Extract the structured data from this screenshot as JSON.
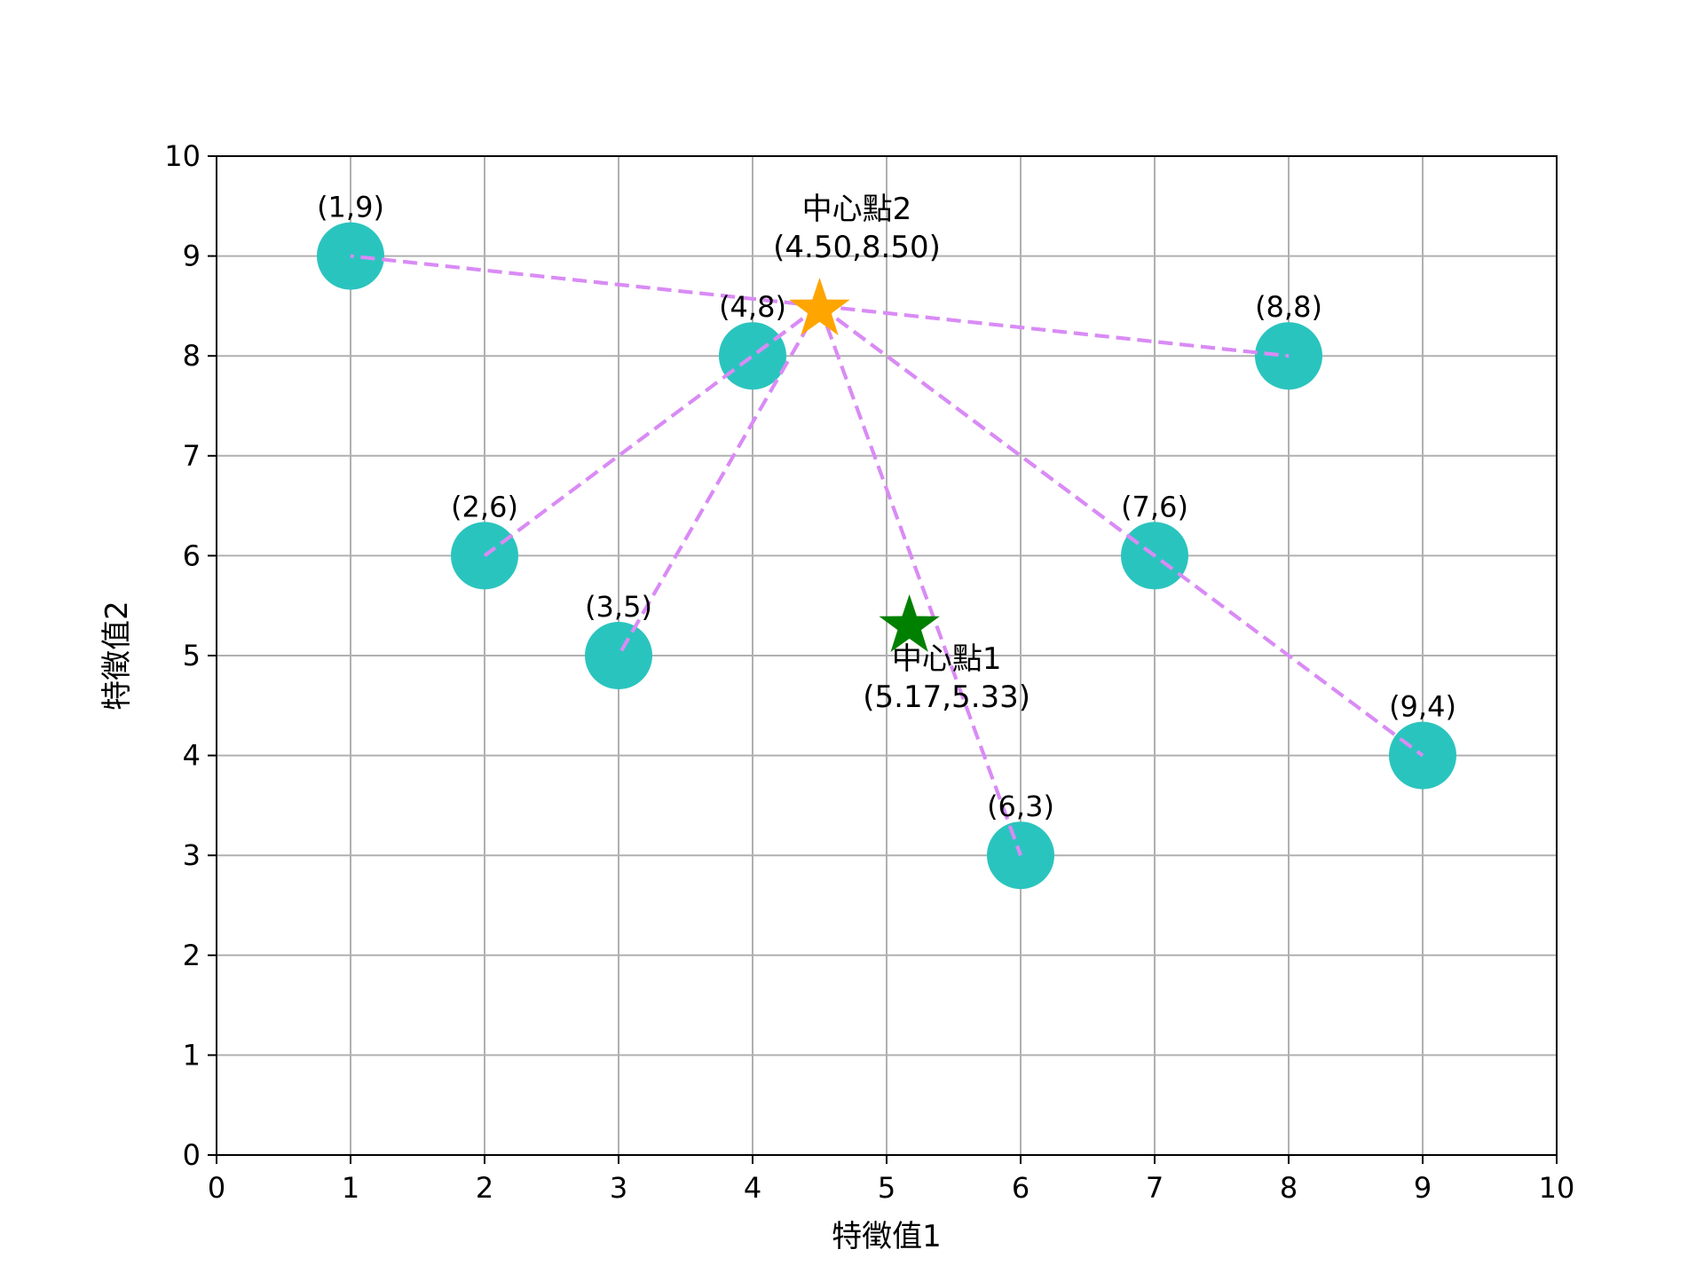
{
  "chart_data": {
    "type": "scatter",
    "title": "",
    "xlabel": "特徵值1",
    "ylabel": "特徵值2",
    "xlim": [
      0,
      10
    ],
    "ylim": [
      0,
      10
    ],
    "xticks": [
      "0",
      "1",
      "2",
      "3",
      "4",
      "5",
      "6",
      "7",
      "8",
      "9",
      "10"
    ],
    "yticks": [
      "0",
      "1",
      "2",
      "3",
      "4",
      "5",
      "6",
      "7",
      "8",
      "9",
      "10"
    ],
    "grid": true,
    "points": [
      {
        "x": 1,
        "y": 9,
        "label": "(1,9)"
      },
      {
        "x": 2,
        "y": 6,
        "label": "(2,6)"
      },
      {
        "x": 3,
        "y": 5,
        "label": "(3,5)"
      },
      {
        "x": 4,
        "y": 8,
        "label": "(4,8)"
      },
      {
        "x": 6,
        "y": 3,
        "label": "(6,3)"
      },
      {
        "x": 7,
        "y": 6,
        "label": "(7,6)"
      },
      {
        "x": 8,
        "y": 8,
        "label": "(8,8)"
      },
      {
        "x": 9,
        "y": 4,
        "label": "(9,4)"
      }
    ],
    "centers": [
      {
        "name": "中心點1",
        "coord_label": "(5.17,5.33)",
        "x": 5.17,
        "y": 5.33,
        "color": "#008000",
        "label_position": "below"
      },
      {
        "name": "中心點2",
        "coord_label": "(4.50,8.50)",
        "x": 4.5,
        "y": 8.5,
        "color": "#FFA500",
        "label_position": "above"
      }
    ],
    "connections": {
      "center_index": 1,
      "point_indices": [
        0,
        1,
        2,
        3,
        4,
        5,
        6,
        7
      ]
    },
    "colors": {
      "point": "#2AC4BE",
      "connection_line": "#D98BF5",
      "grid": "#B0B0B0"
    }
  }
}
